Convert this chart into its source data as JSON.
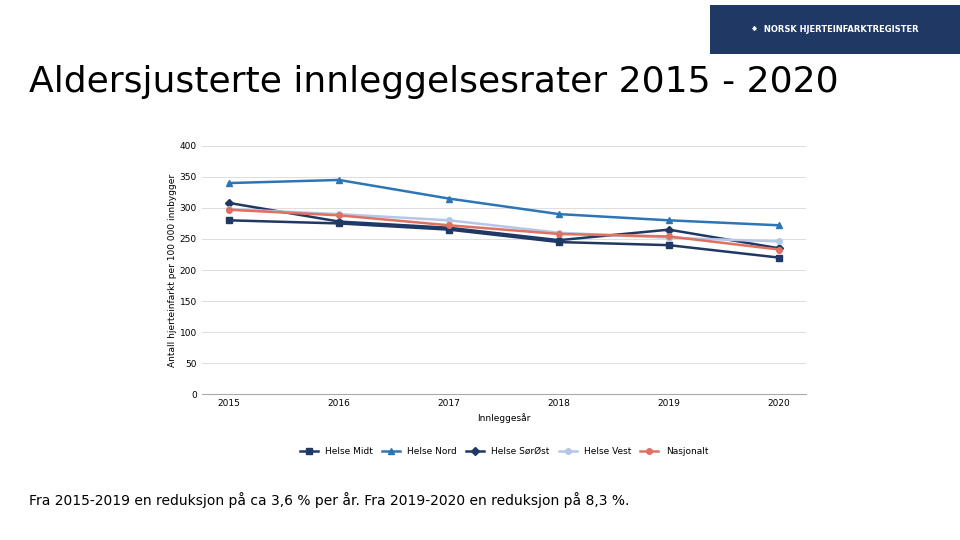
{
  "title": "Aldersjusterte innleggelsesrater 2015 - 2020",
  "ylabel": "Antall hjerteinfarkt per 100 000 innbygger",
  "xlabel": "Innleggesår",
  "years": [
    2015,
    2016,
    2017,
    2018,
    2019,
    2020
  ],
  "series": {
    "Helse Midt": {
      "values": [
        280,
        275,
        265,
        245,
        240,
        220
      ],
      "color": "#1f3864",
      "linewidth": 1.8,
      "marker": "s",
      "markersize": 4
    },
    "Helse Nord": {
      "values": [
        340,
        345,
        315,
        290,
        280,
        272
      ],
      "color": "#2e75b6",
      "linewidth": 1.8,
      "marker": "^",
      "markersize": 4
    },
    "Helse SørØst": {
      "values": [
        308,
        278,
        268,
        248,
        265,
        235
      ],
      "color": "#203864",
      "linewidth": 1.8,
      "marker": "D",
      "markersize": 4
    },
    "Helse Vest": {
      "values": [
        298,
        290,
        280,
        260,
        252,
        246
      ],
      "color": "#b4c7e7",
      "linewidth": 1.8,
      "marker": "o",
      "markersize": 4
    },
    "Nasjonalt": {
      "values": [
        297,
        288,
        272,
        258,
        254,
        233
      ],
      "color": "#e07060",
      "linewidth": 1.8,
      "marker": "o",
      "markersize": 4
    }
  },
  "ylim": [
    0,
    400
  ],
  "yticks": [
    0,
    50,
    100,
    150,
    200,
    250,
    300,
    350,
    400
  ],
  "background_color": "#ffffff",
  "grid_color": "#dddddd",
  "footer_text": "Fra 2015-2019 en reduksjon på ca 3,6 % per år. Fra 2019-2020 en reduksjon på 8,3 %.",
  "title_fontsize": 26,
  "axis_label_fontsize": 6.5,
  "tick_fontsize": 6.5,
  "legend_fontsize": 6.5,
  "footer_fontsize": 10,
  "logo_bg": "#1f3864",
  "logo_text": "⁕  NORSK HJERTEINFARKTREGISTER"
}
